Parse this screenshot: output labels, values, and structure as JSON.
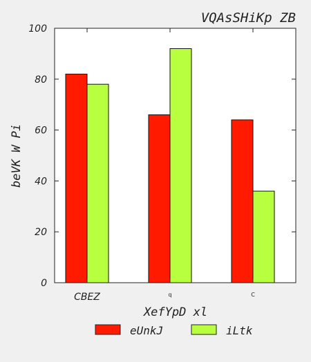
{
  "chart_data": {
    "type": "bar",
    "title": "VQAsSHiKp ZB",
    "xlabel": "XefYpD xl",
    "ylabel": "beVK  W Pi",
    "categories": [
      "CBEZ",
      "q",
      "C"
    ],
    "series": [
      {
        "name": "eUnkJ",
        "values": [
          82,
          66,
          64
        ],
        "color": "#ff1a00"
      },
      {
        "name": "iLtk",
        "values": [
          78,
          92,
          36
        ],
        "color": "#b8ff40"
      }
    ],
    "ylim": [
      0,
      100
    ],
    "yticks": [
      0,
      20,
      40,
      60,
      80,
      100
    ],
    "grid": false,
    "legend": "bottom"
  }
}
